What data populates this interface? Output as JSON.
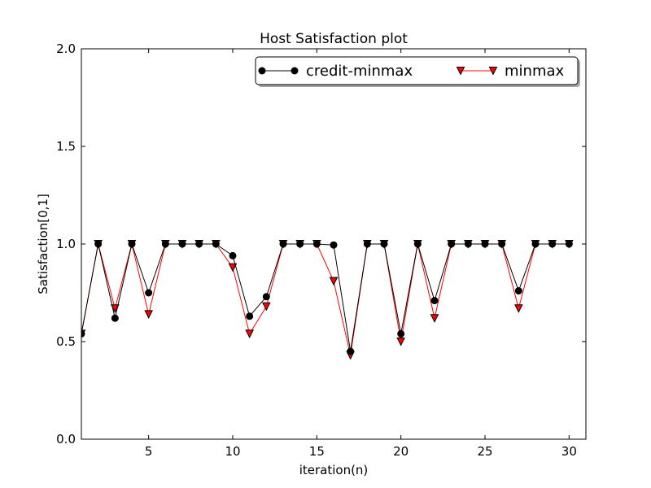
{
  "chart_data": {
    "type": "line",
    "title": "Host Satisfaction plot",
    "xlabel": "iteration(n)",
    "ylabel": "Satisfaction[0,1]",
    "xlim": [
      1,
      31
    ],
    "ylim": [
      0,
      2
    ],
    "xticks": [
      5,
      10,
      15,
      20,
      25,
      30
    ],
    "xtick_labels": [
      "5",
      "10",
      "15",
      "20",
      "25",
      "30"
    ],
    "yticks": [
      0,
      0.5,
      1,
      1.5,
      2
    ],
    "ytick_labels": [
      "0.0",
      "0.5",
      "1.0",
      "1.5",
      "2.0"
    ],
    "grid": false,
    "legend": "top-right",
    "x": [
      1,
      2,
      3,
      4,
      5,
      6,
      7,
      8,
      9,
      10,
      11,
      12,
      13,
      14,
      15,
      16,
      17,
      18,
      19,
      20,
      21,
      22,
      23,
      24,
      25,
      26,
      27,
      28,
      29,
      30
    ],
    "series": [
      {
        "name": "credit-minmax",
        "color": "#000000",
        "marker": "circle",
        "values": [
          0.54,
          1.0,
          0.62,
          1.0,
          0.75,
          1.0,
          1.0,
          1.0,
          1.0,
          0.94,
          0.63,
          0.73,
          1.0,
          1.0,
          1.0,
          0.995,
          0.45,
          1.0,
          1.0,
          0.54,
          1.0,
          0.71,
          1.0,
          1.0,
          1.0,
          1.0,
          0.76,
          1.0,
          1.0,
          1.0
        ]
      },
      {
        "name": "minmax",
        "color": "#ff0000",
        "marker": "triangle-down",
        "values": [
          0.54,
          1.0,
          0.67,
          1.0,
          0.64,
          1.0,
          1.0,
          1.0,
          1.0,
          0.88,
          0.54,
          0.68,
          1.0,
          1.0,
          1.0,
          0.81,
          0.43,
          1.0,
          1.0,
          0.5,
          1.0,
          0.62,
          1.0,
          1.0,
          1.0,
          1.0,
          0.67,
          1.0,
          1.0,
          1.0
        ]
      }
    ]
  }
}
